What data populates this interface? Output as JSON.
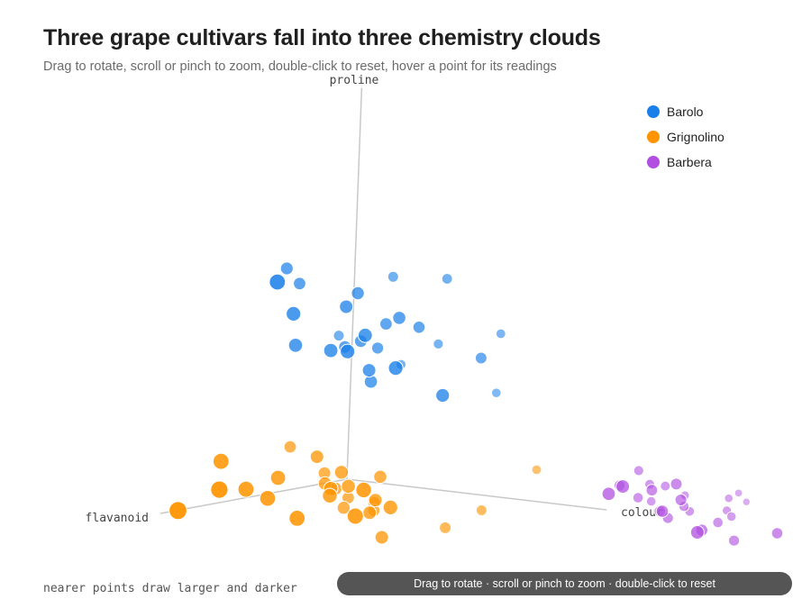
{
  "title": "Three grape cultivars fall into three chemistry clouds",
  "subtitle": "Drag to rotate, scroll or pinch to zoom, double-click to reset, hover a point for its readings",
  "footnote": "nearer points draw larger and darker",
  "hint": "Drag to rotate · scroll or pinch to zoom · double-click to reset",
  "chart_data": {
    "type": "scatter",
    "dimensions": 3,
    "axes": {
      "x": "flavanoid",
      "y": "colour",
      "z": "proline"
    },
    "legend_position": "top-right",
    "grid": false,
    "series": [
      {
        "name": "Barolo",
        "color": "#1a7fe8",
        "points": [
          [
            -0.28,
            -0.46,
            0.98
          ],
          [
            0.05,
            -0.26,
            1.0
          ],
          [
            -0.49,
            -0.2,
            0.94
          ],
          [
            -0.5,
            0.0,
            0.96
          ],
          [
            -0.31,
            -0.43,
            0.9
          ],
          [
            -0.26,
            -0.17,
            0.9
          ],
          [
            -0.2,
            -0.17,
            0.84
          ],
          [
            -0.25,
            0.0,
            0.8
          ],
          [
            -0.1,
            -0.3,
            0.8
          ],
          [
            -0.55,
            -0.06,
            0.6
          ],
          [
            -0.59,
            0.15,
            0.68
          ],
          [
            -0.32,
            -0.1,
            0.74
          ],
          [
            -0.33,
            0.02,
            0.74
          ],
          [
            -0.14,
            -0.05,
            0.72
          ],
          [
            -0.49,
            -0.4,
            0.6
          ],
          [
            -0.16,
            -0.33,
            0.62
          ],
          [
            -0.14,
            -0.18,
            0.62
          ],
          [
            -0.3,
            -0.24,
            0.6
          ],
          [
            -0.09,
            -0.08,
            0.64
          ],
          [
            -0.3,
            -0.18,
            0.64
          ],
          [
            -0.35,
            -0.15,
            0.6
          ],
          [
            -0.1,
            0.1,
            0.58
          ],
          [
            -0.21,
            -0.08,
            0.52
          ],
          [
            -0.25,
            -0.1,
            0.45
          ],
          [
            -0.39,
            0.22,
            0.6
          ],
          [
            -0.55,
            -0.2,
            0.47
          ],
          [
            -0.19,
            0.22,
            0.44
          ],
          [
            -0.62,
            0.12,
            0.36
          ]
        ]
      },
      {
        "name": "Grignolino",
        "color": "#ff9400",
        "points": [
          [
            -0.32,
            -0.45,
            0.04
          ],
          [
            0.05,
            -0.45,
            0.03
          ],
          [
            -0.2,
            -0.26,
            0.04
          ],
          [
            -0.18,
            -0.15,
            -0.02
          ],
          [
            -0.25,
            -0.05,
            -0.04
          ],
          [
            0.02,
            0.08,
            -0.04
          ],
          [
            -0.3,
            -0.3,
            -0.07
          ],
          [
            -0.14,
            -0.16,
            -0.1
          ],
          [
            -0.08,
            -0.12,
            -0.12
          ],
          [
            -0.25,
            -0.22,
            -0.13
          ],
          [
            0.03,
            -0.28,
            -0.14
          ],
          [
            -0.2,
            -0.03,
            -0.15
          ],
          [
            -0.1,
            0.1,
            -0.15
          ],
          [
            0.06,
            0.08,
            -0.17
          ],
          [
            -0.32,
            -0.12,
            -0.2
          ],
          [
            -0.05,
            -0.3,
            -0.05
          ],
          [
            -0.6,
            0.3,
            -0.01
          ],
          [
            -0.48,
            0.18,
            -0.22
          ],
          [
            -0.2,
            -0.05,
            -0.22
          ],
          [
            -0.27,
            -0.2,
            -0.23
          ],
          [
            -0.22,
            -0.24,
            -0.1
          ],
          [
            0.23,
            -0.48,
            -0.2
          ],
          [
            0.18,
            -0.36,
            -0.08
          ],
          [
            0.05,
            -0.15,
            -0.22
          ],
          [
            -0.32,
            -0.12,
            -0.24
          ],
          [
            -0.4,
            0.1,
            -0.31
          ],
          [
            -0.2,
            0.0,
            -0.34
          ],
          [
            -0.32,
            -0.22,
            -0.19
          ],
          [
            -0.15,
            -0.1,
            -0.08
          ],
          [
            0.05,
            -0.35,
            -0.1
          ]
        ]
      },
      {
        "name": "Barbera",
        "color": "#b04fe0",
        "points": [
          [
            -0.56,
            0.72,
            0.06
          ],
          [
            -0.46,
            0.72,
            0.0
          ],
          [
            -0.58,
            0.75,
            -0.01
          ],
          [
            -0.58,
            0.81,
            -0.01
          ],
          [
            -0.52,
            0.75,
            -0.07
          ],
          [
            -0.62,
            0.73,
            -0.11
          ],
          [
            -0.66,
            0.83,
            -0.07
          ],
          [
            -0.4,
            0.98,
            0.06
          ],
          [
            -0.22,
            0.85,
            0.02
          ],
          [
            -0.21,
            0.91,
            0.07
          ],
          [
            -0.41,
            0.88,
            0.01
          ],
          [
            -0.53,
            0.92,
            -0.09
          ],
          [
            -0.4,
            1.0,
            -0.02
          ],
          [
            -0.33,
            0.98,
            -0.07
          ],
          [
            -0.59,
            0.9,
            -0.13
          ],
          [
            -0.46,
            0.91,
            -0.14
          ],
          [
            -0.78,
            0.95,
            -0.06
          ],
          [
            -0.81,
            0.96,
            -0.11
          ],
          [
            -0.7,
            0.97,
            -0.07
          ],
          [
            -0.65,
            1.0,
            -0.12
          ],
          [
            -0.62,
            1.04,
            -0.14
          ],
          [
            -0.35,
            1.12,
            -0.15
          ],
          [
            -0.2,
            1.21,
            -0.12
          ],
          [
            -0.47,
            1.16,
            -0.22
          ],
          [
            -0.42,
            1.36,
            -0.14
          ],
          [
            -0.52,
            1.06,
            -0.15
          ],
          [
            -0.43,
            0.9,
            -0.1
          ]
        ]
      }
    ]
  }
}
